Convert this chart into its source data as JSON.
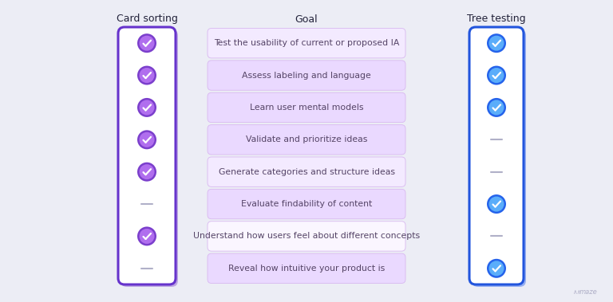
{
  "bg_color": "#ecedf5",
  "title_card_sorting": "Card sorting",
  "title_goal": "Goal",
  "title_tree_testing": "Tree testing",
  "goals": [
    "Test the usability of current or proposed IA",
    "Assess labeling and language",
    "Learn user mental models",
    "Validate and prioritize ideas",
    "Generate categories and structure ideas",
    "Evaluate findability of content",
    "Understand how users feel about different concepts",
    "Reveal how intuitive your product is"
  ],
  "card_sorting_checks": [
    true,
    true,
    true,
    true,
    true,
    false,
    true,
    false
  ],
  "tree_testing_checks": [
    true,
    true,
    true,
    false,
    false,
    true,
    false,
    true
  ],
  "goal_row_colors": [
    "#f3eaff",
    "#ead9ff",
    "#ead9ff",
    "#ead9ff",
    "#f3eaff",
    "#ead9ff",
    "#faf6ff",
    "#ead9ff"
  ],
  "goal_row_border": "#d8b8f0",
  "check_fill_card": "#b06eee",
  "check_ring_card": "#7b3fcc",
  "check_fill_tree": "#5aadfa",
  "check_ring_tree": "#2563eb",
  "panel_bg": "#ffffff",
  "panel_border_card": "#6633cc",
  "panel_border_tree": "#2255dd",
  "panel_shadow_card": "#8855cc",
  "panel_shadow_tree": "#3366ee",
  "dash_color": "#b0b0c8",
  "title_color": "#22223a",
  "goal_text_color": "#554466",
  "title_fontsize": 9.0,
  "goal_fontsize": 7.8,
  "maze_color": "#b0b0c8"
}
